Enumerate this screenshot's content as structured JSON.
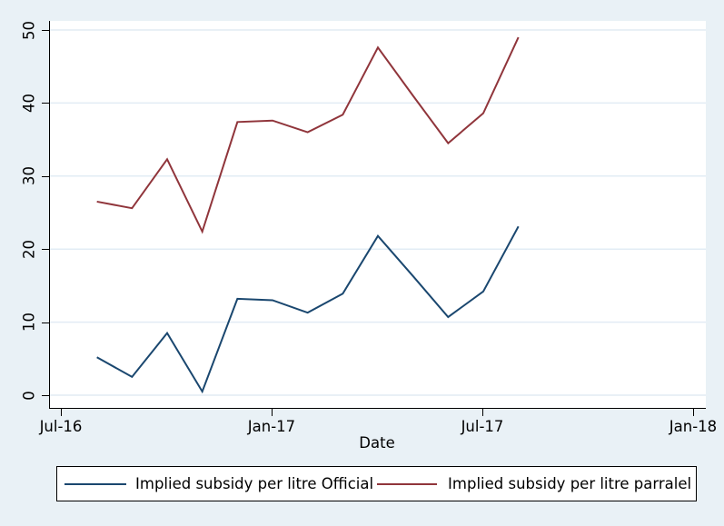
{
  "figure": {
    "background_color": "#e9f1f6",
    "plot_background_color": "#ffffff",
    "grid_color": "#e2ecf4",
    "axis_color": "#000000",
    "text_color": "#000000"
  },
  "chart_data": {
    "type": "line",
    "title": "",
    "xlabel": "Date",
    "ylabel": "",
    "grid": "horizontal",
    "legend_position": "bottom",
    "y_ticks": [
      0,
      10,
      20,
      30,
      40,
      50
    ],
    "ylim": [
      -1.75,
      51.25
    ],
    "x_tick_labels": [
      "Jul-16",
      "Jan-17",
      "Jul-17",
      "Jan-18"
    ],
    "x_tick_months": [
      0,
      6,
      12,
      18
    ],
    "xlim_months": [
      -0.34,
      18.34
    ],
    "x_labels": [
      "Aug-16",
      "Sep-16",
      "Oct-16",
      "Nov-16",
      "Dec-16",
      "Jan-17",
      "Feb-17",
      "Mar-17",
      "Apr-17",
      "May-17",
      "Jun-17",
      "Jul-17",
      "Aug-17"
    ],
    "x_months": [
      1,
      2,
      3,
      4,
      5,
      6,
      7,
      8,
      9,
      10,
      11,
      12,
      13
    ],
    "series": [
      {
        "name": "Implied subsidy per litre Official",
        "color": "#1a476f",
        "values": [
          5.2,
          2.5,
          8.5,
          0.5,
          13.2,
          13.0,
          11.3,
          13.9,
          21.8,
          16.3,
          10.7,
          14.2,
          23.1
        ]
      },
      {
        "name": "Implied subsidy per litre parralel",
        "color": "#90353b",
        "values": [
          26.5,
          25.6,
          32.3,
          22.4,
          37.4,
          37.6,
          36.0,
          38.4,
          47.6,
          41.0,
          34.5,
          38.6,
          49.0
        ]
      }
    ]
  },
  "legend": {
    "item_official_label": "Implied subsidy per litre Official",
    "item_parallel_label": "Implied subsidy per litre parralel"
  }
}
